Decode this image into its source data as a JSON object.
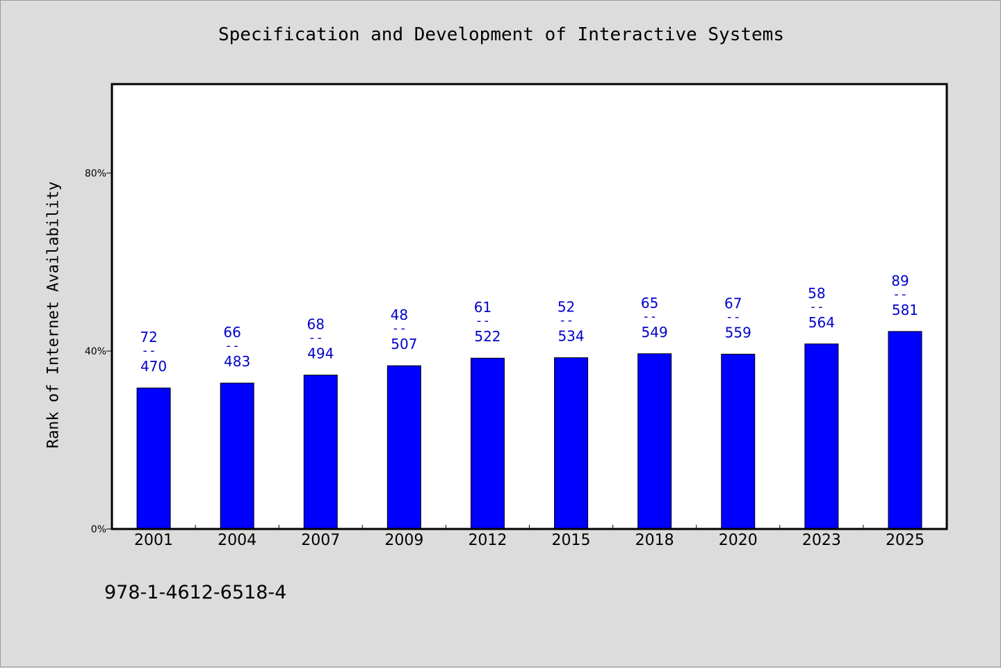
{
  "chart_data": {
    "type": "bar",
    "title": "Specification and Development of Interactive Systems",
    "ylabel": "Rank of Internet Availability",
    "xlabel": "",
    "categories": [
      "2001",
      "2004",
      "2007",
      "2009",
      "2012",
      "2015",
      "2018",
      "2020",
      "2023",
      "2025"
    ],
    "values": [
      31.7,
      32.8,
      34.6,
      36.7,
      38.4,
      38.5,
      39.4,
      39.3,
      41.6,
      44.4
    ],
    "top_labels": [
      "72",
      "66",
      "68",
      "48",
      "61",
      "52",
      "65",
      "67",
      "58",
      "89"
    ],
    "separator": "--",
    "bottom_labels": [
      "470",
      "483",
      "494",
      "507",
      "522",
      "534",
      "549",
      "559",
      "564",
      "581"
    ],
    "ylim": [
      0,
      100
    ],
    "yticks": [
      0,
      40,
      80
    ],
    "ytick_labels": [
      "0%",
      "40%",
      "80%"
    ],
    "grid": false,
    "bar_color": "#0000ff",
    "label_color": "#0000cc"
  },
  "footer": {
    "isbn": "978-1-4612-6518-4"
  }
}
